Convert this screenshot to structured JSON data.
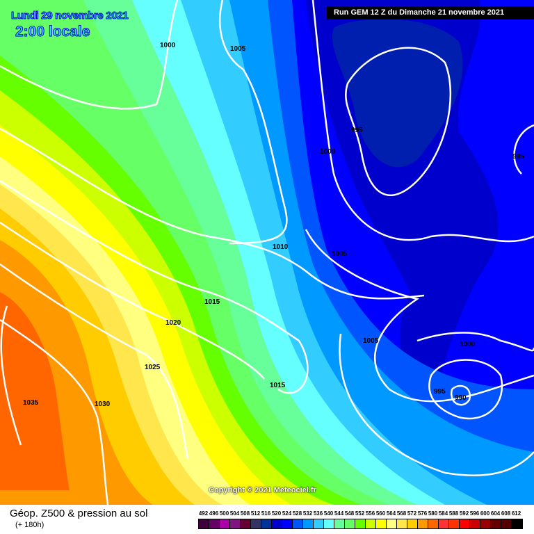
{
  "header": {
    "date": "Lundi 29 novembre 2021",
    "time": "2:00 locale",
    "run": "Run GEM 12 Z du Dimanche 21 novembre 2021"
  },
  "copyright": "Copyright © 2021 Meteociel.fr",
  "footer": {
    "title": "Géop. Z500 & pression au sol",
    "subtitle": "(+ 180h)"
  },
  "legend": {
    "values": [
      "492",
      "496",
      "500",
      "504",
      "508",
      "512",
      "516",
      "520",
      "524",
      "528",
      "532",
      "536",
      "540",
      "544",
      "548",
      "552",
      "556",
      "560",
      "564",
      "568",
      "572",
      "576",
      "580",
      "584",
      "588",
      "592",
      "596",
      "600",
      "604",
      "608",
      "612"
    ],
    "colors": [
      "#400040",
      "#660066",
      "#aa00aa",
      "#801480",
      "#660033",
      "#333366",
      "#003399",
      "#0000cc",
      "#0000ff",
      "#0055ff",
      "#0099ff",
      "#33ccff",
      "#66ffff",
      "#66ff99",
      "#66ff66",
      "#66ff00",
      "#ccff00",
      "#ffff00",
      "#ffff80",
      "#ffe64d",
      "#ffcc00",
      "#ff9900",
      "#ff6600",
      "#ff3333",
      "#ff3300",
      "#ff0000",
      "#cc0000",
      "#990000",
      "#660000",
      "#550000",
      "#000000"
    ]
  },
  "isobars": [
    {
      "value": "1000"
    },
    {
      "value": "1005"
    },
    {
      "value": "995"
    },
    {
      "value": "1000"
    },
    {
      "value": "995"
    },
    {
      "value": "1010"
    },
    {
      "value": "1005"
    },
    {
      "value": "1015"
    },
    {
      "value": "1020"
    },
    {
      "value": "1005"
    },
    {
      "value": "1000"
    },
    {
      "value": "1025"
    },
    {
      "value": "1015"
    },
    {
      "value": "995"
    },
    {
      "value": "990"
    },
    {
      "value": "1035"
    },
    {
      "value": "1030"
    }
  ]
}
